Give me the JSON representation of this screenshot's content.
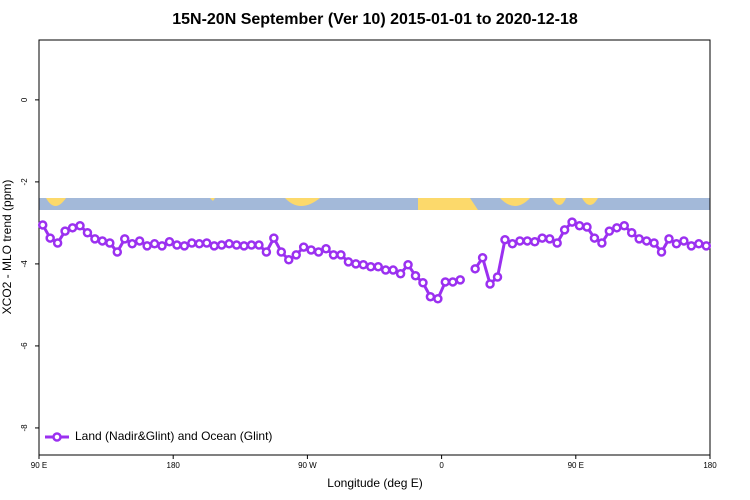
{
  "chart_data": {
    "type": "line",
    "title": "15N-20N September (Ver 10)   2015-01-01 to 2020-12-18",
    "xlabel": "Longitude (deg E)",
    "ylabel": "XCO2 - MLO trend (ppm)",
    "xlim": [
      90,
      540
    ],
    "ylim": [
      -8.66,
      1.46
    ],
    "xticks": [
      {
        "value": 90,
        "label": "90 E"
      },
      180,
      {
        "value": 270,
        "label": "90 W"
      },
      {
        "value": 360,
        "label": "0"
      },
      {
        "value": 450,
        "label": "90 E"
      },
      {
        "value": 540,
        "label": "180"
      }
    ],
    "yticks": [
      0,
      -2,
      -4,
      -6,
      -8
    ],
    "legend": "bottom-left",
    "x": [
      92.5,
      97.5,
      102.5,
      107.5,
      112.5,
      117.5,
      122.5,
      127.5,
      132.5,
      137.5,
      142.5,
      147.5,
      152.5,
      157.5,
      162.5,
      167.5,
      172.5,
      177.5,
      182.5,
      187.5,
      192.5,
      197.5,
      202.5,
      207.5,
      212.5,
      217.5,
      222.5,
      227.5,
      232.5,
      237.5,
      242.5,
      247.5,
      252.5,
      257.5,
      262.5,
      267.5,
      272.5,
      277.5,
      282.5,
      287.5,
      292.5,
      297.5,
      302.5,
      307.5,
      312.5,
      317.5,
      322.5,
      327.5,
      332.5,
      337.5,
      342.5,
      347.5,
      352.5,
      357.5,
      362.5,
      367.5,
      372.5,
      377.5,
      382.5,
      387.5,
      392.5,
      397.5,
      402.5,
      407.5,
      412.5,
      417.5,
      422.5,
      427.5,
      432.5,
      437.5,
      442.5,
      447.5,
      452.5,
      457.5,
      462.5,
      467.5,
      472.5,
      477.5,
      482.5,
      487.5,
      492.5,
      497.5,
      502.5,
      507.5,
      512.5,
      517.5,
      522.5,
      527.5,
      532.5,
      537.5
    ],
    "series": [
      {
        "name": "Land (Nadir&Glint) and Ocean (Glint)",
        "color": "#9b30f0",
        "values": [
          -3.05,
          -3.37,
          -3.49,
          -3.2,
          -3.12,
          -3.07,
          -3.24,
          -3.39,
          -3.44,
          -3.49,
          -3.71,
          -3.39,
          -3.51,
          -3.44,
          -3.56,
          -3.51,
          -3.56,
          -3.46,
          -3.54,
          -3.56,
          -3.49,
          -3.51,
          -3.49,
          -3.56,
          -3.54,
          -3.51,
          -3.54,
          -3.56,
          -3.54,
          -3.54,
          -3.71,
          -3.37,
          -3.71,
          -3.9,
          -3.78,
          -3.59,
          -3.66,
          -3.71,
          -3.63,
          -3.78,
          -3.78,
          -3.95,
          -4.0,
          -4.02,
          -4.07,
          -4.07,
          -4.15,
          -4.15,
          -4.24,
          -4.02,
          -4.29,
          -4.46,
          -4.8,
          -4.85,
          -4.44,
          -4.44,
          -4.39,
          null,
          -4.12,
          -3.85,
          -4.49,
          -4.32,
          -3.41,
          -3.51,
          -3.44,
          -3.44,
          -3.46,
          -3.37,
          -3.39,
          -3.49,
          -3.17,
          -2.98,
          -3.07,
          -3.1,
          -3.37,
          -3.49,
          -3.2,
          -3.12,
          -3.07,
          -3.24,
          -3.39,
          -3.44,
          -3.49,
          -3.71,
          -3.39,
          -3.51,
          -3.44,
          -3.56,
          -3.51,
          -3.56
        ]
      }
    ]
  }
}
